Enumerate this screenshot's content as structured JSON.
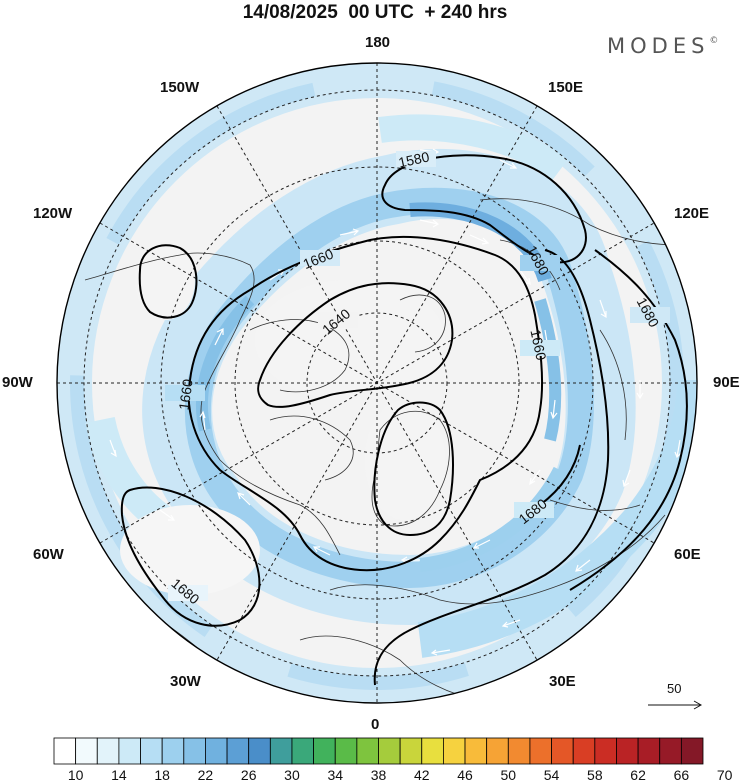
{
  "header": {
    "title": "14/08/2025  00 UTC  + 240 hrs",
    "brand": "MODES",
    "brand_mark": "©"
  },
  "map": {
    "projection": "polar stereographic (north)",
    "longitude_labels": {
      "top": "180",
      "bottom": "0",
      "left": "90W",
      "right": "90E",
      "upper_left_outer": "150W",
      "upper_left": "120W",
      "upper_right_outer": "150E",
      "upper_right": "120E",
      "lower_left": "60W",
      "lower_left_outer": "30W",
      "lower_right": "60E",
      "lower_right_outer": "30E"
    },
    "contour_labels": [
      "1580",
      "1660",
      "1640",
      "1680",
      "1660",
      "1680",
      "1660",
      "1680",
      "1680"
    ],
    "vector_reference": "50"
  },
  "colorbar": {
    "tick_labels": [
      "10",
      "14",
      "18",
      "22",
      "26",
      "30",
      "34",
      "38",
      "42",
      "46",
      "50",
      "54",
      "58",
      "62",
      "66",
      "70"
    ],
    "colors": [
      "#ffffff",
      "#f2fafd",
      "#e2f3fa",
      "#cdeaf7",
      "#b6def4",
      "#9dd0ee",
      "#86c1e7",
      "#70b1df",
      "#5c9fd5",
      "#4a8ec9",
      "#3f9e9c",
      "#3aa87a",
      "#41b25c",
      "#5abb48",
      "#7ec43e",
      "#a5cc3c",
      "#c9d53b",
      "#e8df3e",
      "#f6d23f",
      "#f8bb3a",
      "#f6a335",
      "#f28a30",
      "#ec702b",
      "#e45727",
      "#d93e24",
      "#cb2d24",
      "#ba2325",
      "#a81d26",
      "#961a27",
      "#841827"
    ]
  }
}
